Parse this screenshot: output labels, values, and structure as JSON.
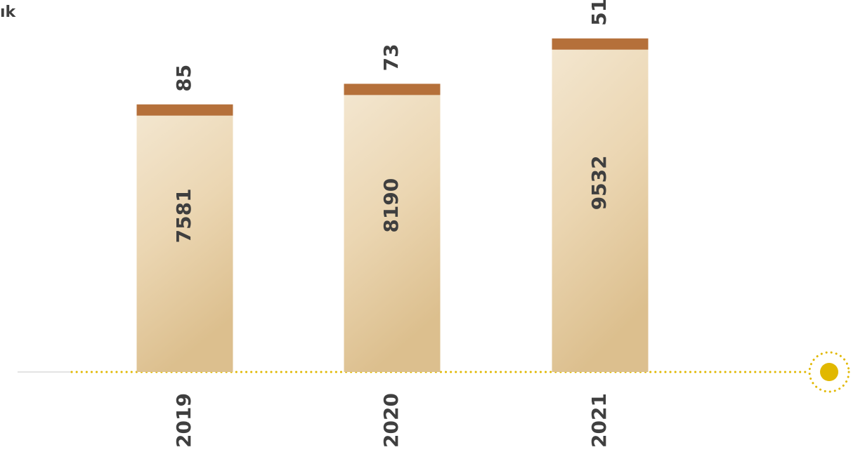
{
  "chart_data": {
    "type": "bar",
    "title": "ık",
    "categories": [
      "2019",
      "2020",
      "2021"
    ],
    "values": [
      7581,
      8190,
      9532
    ],
    "cap_values": [
      85,
      73,
      51
    ],
    "color": "#e9d3ad",
    "cap_color": "#b5703a",
    "ylim": [
      0,
      11000
    ]
  }
}
